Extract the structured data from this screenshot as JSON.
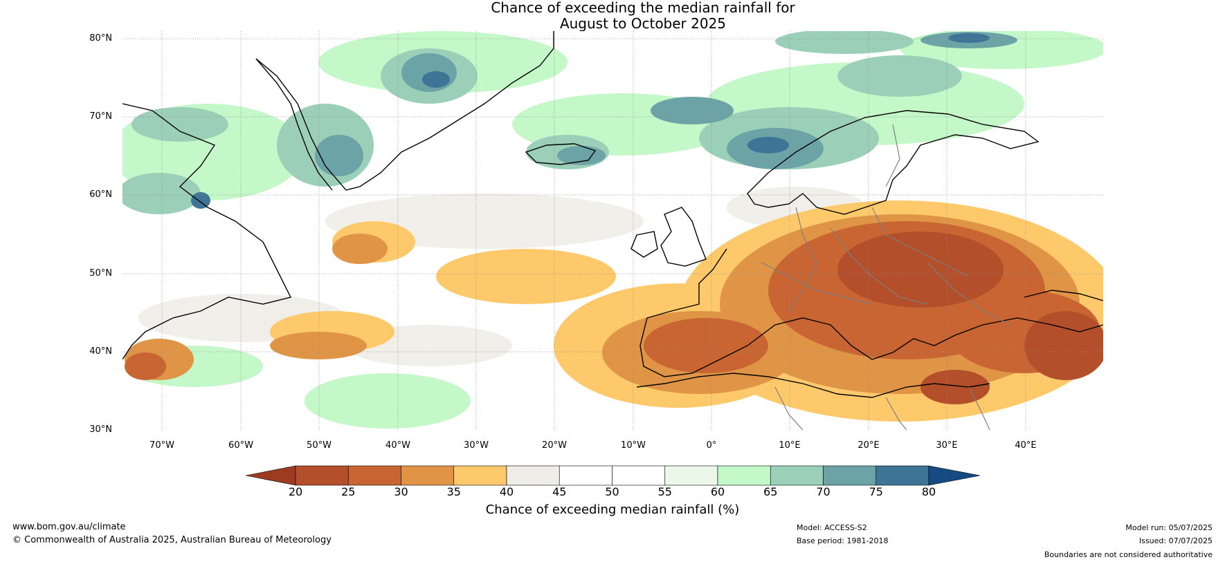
{
  "title": {
    "line1": "Chance of exceeding the median rainfall for",
    "line2": "August to October 2025"
  },
  "lat_labels": [
    "80°N",
    "70°N",
    "60°N",
    "50°N",
    "40°N",
    "30°N"
  ],
  "lon_labels": [
    "70°W",
    "60°W",
    "50°W",
    "40°W",
    "30°W",
    "20°W",
    "10°W",
    "0°",
    "10°E",
    "20°E",
    "30°E",
    "40°E"
  ],
  "colorbar": {
    "title": "Chance of exceeding median rainfall (%)",
    "ticks": [
      "20",
      "25",
      "30",
      "35",
      "40",
      "45",
      "50",
      "55",
      "60",
      "65",
      "70",
      "75",
      "80"
    ],
    "colors": [
      "#9c3b22",
      "#b34f2a",
      "#c96532",
      "#e09446",
      "#fec96a",
      "#efede7",
      "#ffffff",
      "#ffffff",
      "#eaf7e9",
      "#c4f8c8",
      "#9bcfb8",
      "#6ca3a6",
      "#3e7596",
      "#154b80"
    ]
  },
  "footer": {
    "website": "www.bom.gov.au/climate",
    "copyright": "© Commonwealth of Australia 2025, Australian Bureau of Meteorology",
    "model": "Model: ACCESS-S2",
    "base_period": "Base period: 1981-2018",
    "model_run": "Model run: 05/07/2025",
    "issued": "Issued: 07/07/2025",
    "disclaimer": "Boundaries are not considered authoritative"
  }
}
